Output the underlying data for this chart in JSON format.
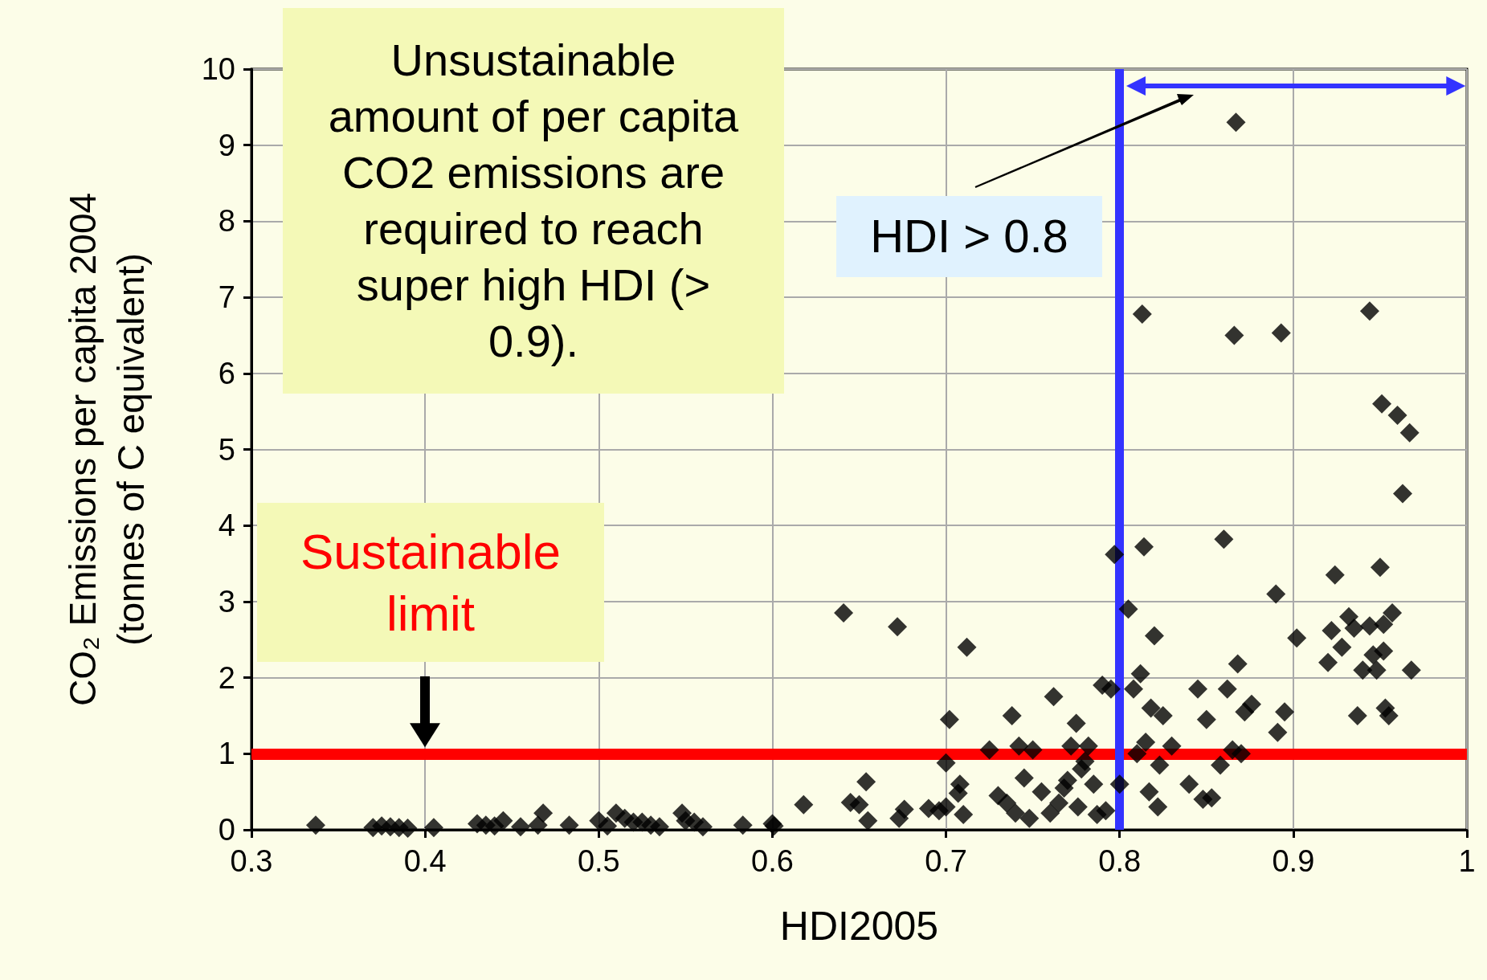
{
  "chart_data": {
    "type": "scatter",
    "xlabel": "HDI2005",
    "ylabel": "CO₂ Emissions per capita 2004\n(tonnes of C equivalent)",
    "xlim": [
      0.3,
      1
    ],
    "xticks": [
      0.3,
      0.4,
      0.5,
      0.6,
      0.7,
      0.8,
      0.9,
      1
    ],
    "ylim": [
      0,
      10
    ],
    "yticks": [
      0,
      1,
      2,
      3,
      4,
      5,
      6,
      7,
      8,
      9,
      10
    ],
    "grid": true,
    "marker": "diamond",
    "series": [
      {
        "color": "#000000",
        "x": [
          0.337,
          0.37,
          0.375,
          0.38,
          0.39,
          0.385,
          0.405,
          0.43,
          0.435,
          0.445,
          0.44,
          0.455,
          0.465,
          0.468,
          0.483,
          0.5,
          0.505,
          0.51,
          0.515,
          0.52,
          0.525,
          0.53,
          0.535,
          0.548,
          0.55,
          0.555,
          0.56,
          0.583,
          0.6,
          0.601,
          0.618,
          0.641,
          0.645,
          0.65,
          0.654,
          0.655,
          0.672,
          0.673,
          0.676,
          0.69,
          0.696,
          0.7,
          0.702,
          0.7,
          0.708,
          0.71,
          0.712,
          0.707,
          0.725,
          0.73,
          0.735,
          0.738,
          0.74,
          0.742,
          0.745,
          0.748,
          0.75,
          0.755,
          0.76,
          0.762,
          0.765,
          0.768,
          0.77,
          0.772,
          0.775,
          0.776,
          0.778,
          0.78,
          0.782,
          0.785,
          0.787,
          0.79,
          0.792,
          0.795,
          0.797,
          0.8,
          0.805,
          0.808,
          0.81,
          0.812,
          0.813,
          0.814,
          0.815,
          0.817,
          0.818,
          0.82,
          0.822,
          0.823,
          0.825,
          0.83,
          0.84,
          0.845,
          0.848,
          0.85,
          0.853,
          0.858,
          0.86,
          0.862,
          0.865,
          0.866,
          0.867,
          0.868,
          0.87,
          0.872,
          0.876,
          0.89,
          0.891,
          0.893,
          0.895,
          0.902,
          0.92,
          0.922,
          0.924,
          0.928,
          0.932,
          0.935,
          0.937,
          0.94,
          0.944,
          0.944,
          0.946,
          0.948,
          0.95,
          0.951,
          0.952,
          0.952,
          0.953,
          0.955,
          0.957,
          0.96,
          0.963,
          0.967,
          0.968
        ],
        "values": [
          0.06,
          0.03,
          0.05,
          0.04,
          0.02,
          0.03,
          0.03,
          0.08,
          0.06,
          0.12,
          0.05,
          0.04,
          0.06,
          0.22,
          0.06,
          0.12,
          0.05,
          0.22,
          0.15,
          0.1,
          0.1,
          0.06,
          0.04,
          0.22,
          0.12,
          0.1,
          0.04,
          0.06,
          0.08,
          0.05,
          0.33,
          2.85,
          0.36,
          0.33,
          0.63,
          0.12,
          2.67,
          0.15,
          0.27,
          0.28,
          0.25,
          0.3,
          1.45,
          0.88,
          0.6,
          0.2,
          2.4,
          0.48,
          1.05,
          0.45,
          0.35,
          1.5,
          0.22,
          1.1,
          0.68,
          0.15,
          1.05,
          0.5,
          0.22,
          1.75,
          0.35,
          0.55,
          0.65,
          1.1,
          1.4,
          0.3,
          0.8,
          0.9,
          1.1,
          0.6,
          0.2,
          1.9,
          0.25,
          1.85,
          3.62,
          0.6,
          2.9,
          1.85,
          1.0,
          2.05,
          6.78,
          3.72,
          1.15,
          0.5,
          1.6,
          2.55,
          0.3,
          0.85,
          1.5,
          1.1,
          0.6,
          1.85,
          0.4,
          1.45,
          0.42,
          0.85,
          3.82,
          1.85,
          1.05,
          6.5,
          9.3,
          2.18,
          1.0,
          1.55,
          1.65,
          3.1,
          1.28,
          6.53,
          1.55,
          2.52,
          2.2,
          2.62,
          3.35,
          2.4,
          2.8,
          2.65,
          1.5,
          2.1,
          6.82,
          2.68,
          2.3,
          2.1,
          3.45,
          5.6,
          2.7,
          2.35,
          1.6,
          1.5,
          2.85,
          5.45,
          4.42,
          5.22,
          2.1
        ]
      }
    ],
    "ref_lines": [
      {
        "axis": "y",
        "value": 1,
        "label": "Sustainable limit",
        "color": "#ff0000"
      },
      {
        "axis": "x",
        "value": 0.8,
        "label": "HDI > 0.8",
        "color": "#3333ff"
      }
    ],
    "annotations": [
      "Unsustainable amount of per capita CO2 emissions are required to reach super high HDI (> 0.9)."
    ]
  }
}
